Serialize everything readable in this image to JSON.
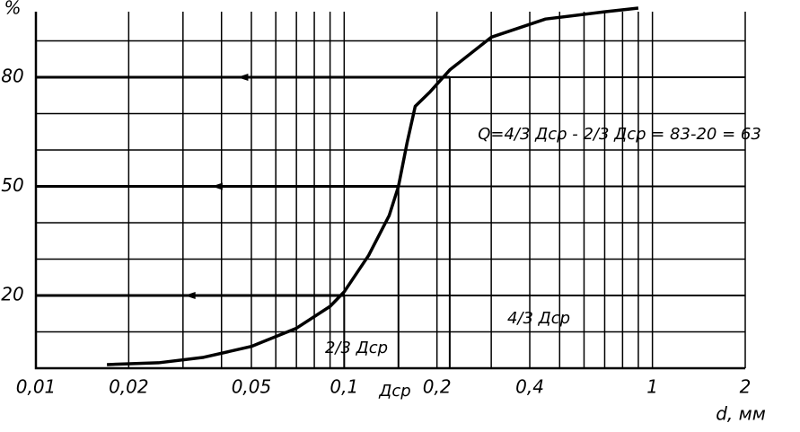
{
  "chart_data": {
    "type": "line",
    "x_label": "d, мм",
    "y_label": "%",
    "x": [
      0.017,
      0.025,
      0.035,
      0.05,
      0.07,
      0.09,
      0.1,
      0.12,
      0.14,
      0.15,
      0.16,
      0.17,
      0.19,
      0.22,
      0.3,
      0.45,
      0.7,
      0.9
    ],
    "series": [
      {
        "color": "#000000",
        "values": [
          1,
          1.5,
          3,
          6,
          11,
          17,
          21,
          31,
          42,
          50,
          62,
          72,
          76,
          82,
          91,
          96,
          98,
          99
        ]
      }
    ],
    "xlim": [
      0.01,
      2
    ],
    "log_x": true,
    "xticks": [
      {
        "value": 0.01,
        "label": "0,01"
      },
      {
        "value": 0.02,
        "label": "0,02"
      },
      {
        "value": 0.05,
        "label": "0,05"
      },
      {
        "value": 0.1,
        "label": "0,1"
      },
      {
        "value": 0.2,
        "label": "0,2"
      },
      {
        "value": 0.4,
        "label": "0,4"
      },
      1,
      2
    ],
    "minor_xticks": [
      0.03,
      0.04,
      0.06,
      0.07,
      0.08,
      0.09,
      0.3,
      0.5,
      0.6,
      0.7,
      0.8,
      0.9
    ],
    "ylim": [
      0,
      100
    ],
    "yticks": [
      20,
      50,
      80
    ],
    "minor_yticks": [
      10,
      30,
      40,
      60,
      70,
      90
    ],
    "grid": true,
    "guides": [
      {
        "x": 0.1,
        "y": 20
      },
      {
        "x": 0.15,
        "y": 50
      },
      {
        "x": 0.22,
        "y": 80
      }
    ],
    "annotations": [
      "2/3 Дср",
      "Дср",
      "4/3 Дср",
      "Q=4/3 Дср - 2/3 Дср = 83-20 = 63"
    ]
  }
}
